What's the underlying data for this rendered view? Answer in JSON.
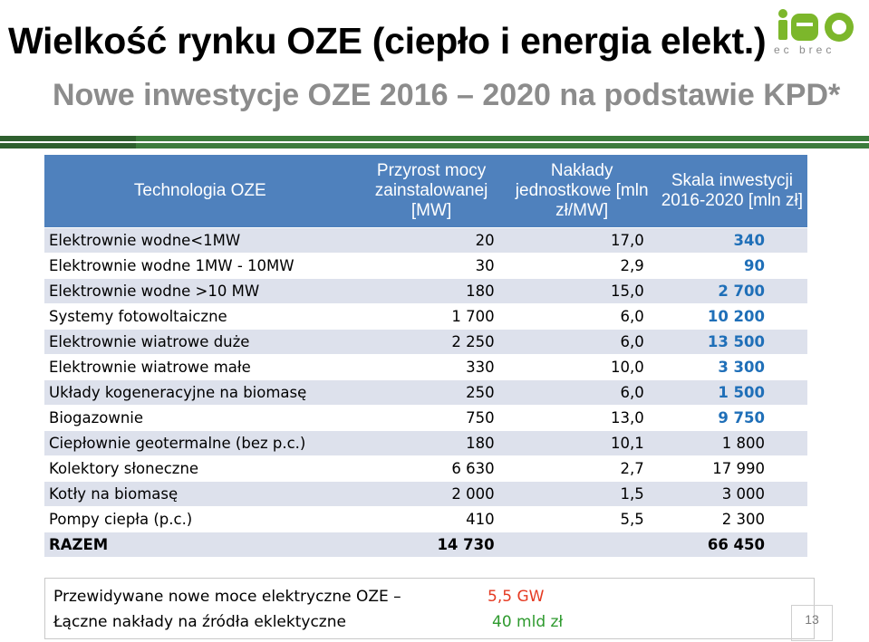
{
  "header": {
    "title": "Wielkość rynku OZE (ciepło i energia elekt.)",
    "subtitle": "Nowe inwestycje OZE 2016 – 2020 na podstawie KPD*"
  },
  "logo": {
    "mark": "iEO",
    "tagline": "e c  b r e c",
    "colors": {
      "green": "#7cb72b",
      "grey": "#8a8a8a"
    }
  },
  "table": {
    "headers": [
      "Technologia OZE",
      "Przyrost mocy zainstalowanej [MW]",
      "Nakłady jednostkowe [mln zł/MW]",
      "Skala inwestycji 2016-2020 [mln zł]"
    ],
    "rows": [
      {
        "name": "Elektrownie wodne<1MW",
        "mw": "20",
        "unit": "17,0",
        "scale": "340"
      },
      {
        "name": "Elektrownie wodne 1MW - 10MW",
        "mw": "30",
        "unit": "2,9",
        "scale": "90"
      },
      {
        "name": "Elektrownie wodne >10 MW",
        "mw": "180",
        "unit": "15,0",
        "scale": "2 700"
      },
      {
        "name": "Systemy fotowoltaiczne",
        "mw": "1 700",
        "unit": "6,0",
        "scale": "10 200"
      },
      {
        "name": "Elektrownie wiatrowe duże",
        "mw": "2 250",
        "unit": "6,0",
        "scale": "13 500"
      },
      {
        "name": "Elektrownie wiatrowe małe",
        "mw": "330",
        "unit": "10,0",
        "scale": "3 300"
      },
      {
        "name": "Układy kogeneracyjne na biomasę",
        "mw": "250",
        "unit": "6,0",
        "scale": "1 500"
      },
      {
        "name": "Biogazownie",
        "mw": "750",
        "unit": "13,0",
        "scale": "9 750"
      },
      {
        "name": "Ciepłownie geotermalne (bez p.c.)",
        "mw": "180",
        "unit": "10,1",
        "scale": "1 800"
      },
      {
        "name": "Kolektory słoneczne",
        "mw": "6 630",
        "unit": "2,7",
        "scale": "17 990"
      },
      {
        "name": "Kotły na biomasę",
        "mw": "2 000",
        "unit": "1,5",
        "scale": "3 000"
      },
      {
        "name": "Pompy ciepła (p.c.)",
        "mw": "410",
        "unit": "5,5",
        "scale": "2 300"
      }
    ],
    "total": {
      "name": "RAZEM",
      "mw": "14 730",
      "unit": "",
      "scale": "66 450"
    }
  },
  "summary": {
    "line1_label": "Przewidywane  nowe moce elektryczne OZE –",
    "line1_value": "5,5 GW",
    "line2_label": "Łączne nakłady na źródła eklektyczne",
    "line2_value": "40 mld zł"
  },
  "page_number": "13",
  "colors": {
    "header_bg": "#4f81bd",
    "row_stripe": "#dde1ec",
    "highlight_blue": "#1f6fb8",
    "accent_red": "#e53a22",
    "accent_green": "#2e9a2e"
  }
}
